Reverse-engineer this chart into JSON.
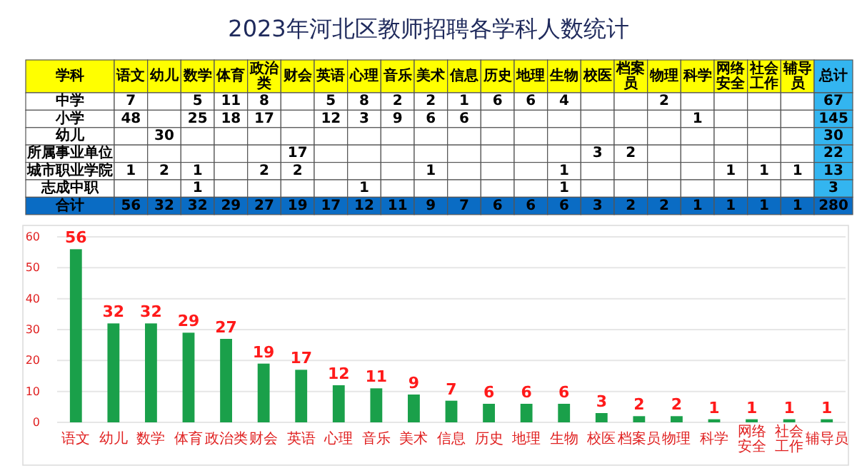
{
  "chart_data": [
    {
      "type": "heatmap",
      "title": "2023年河北区教师招聘各学科人数统计",
      "ylabel": "学科",
      "data_labels": true,
      "categories": [
        "语文",
        "幼儿",
        "数学",
        "体育",
        "政治类",
        "财会",
        "英语",
        "心理",
        "音乐",
        "美术",
        "信息",
        "历史",
        "地理",
        "生物",
        "校医",
        "档案员",
        "物理",
        "科学",
        "网络安全",
        "社会工作",
        "辅导员",
        "总计"
      ],
      "y_categories": [
        "中学",
        "小学",
        "幼儿",
        "所属事业单位",
        "城市职业学院",
        "志成中职",
        "合计"
      ],
      "cells": [
        [
          7,
          null,
          5,
          11,
          8,
          null,
          5,
          8,
          2,
          2,
          1,
          6,
          6,
          4,
          null,
          null,
          2,
          null,
          null,
          null,
          null,
          67
        ],
        [
          48,
          null,
          25,
          18,
          17,
          null,
          12,
          3,
          9,
          6,
          6,
          null,
          null,
          null,
          null,
          null,
          null,
          1,
          null,
          null,
          null,
          145
        ],
        [
          null,
          30,
          null,
          null,
          null,
          null,
          null,
          null,
          null,
          null,
          null,
          null,
          null,
          null,
          null,
          null,
          null,
          null,
          null,
          null,
          null,
          30
        ],
        [
          null,
          null,
          null,
          null,
          null,
          17,
          null,
          null,
          null,
          null,
          null,
          null,
          null,
          null,
          3,
          2,
          null,
          null,
          null,
          null,
          null,
          22
        ],
        [
          1,
          2,
          1,
          null,
          2,
          2,
          null,
          null,
          null,
          1,
          null,
          null,
          null,
          1,
          null,
          null,
          null,
          null,
          1,
          1,
          1,
          13
        ],
        [
          null,
          null,
          1,
          null,
          null,
          null,
          null,
          1,
          null,
          null,
          null,
          null,
          null,
          1,
          null,
          null,
          null,
          null,
          null,
          null,
          null,
          3
        ],
        [
          56,
          32,
          32,
          29,
          27,
          19,
          17,
          12,
          11,
          9,
          7,
          6,
          6,
          6,
          3,
          2,
          2,
          1,
          1,
          1,
          1,
          280
        ]
      ]
    },
    {
      "type": "bar",
      "categories": [
        "语文",
        "幼儿",
        "数学",
        "体育",
        "政治类",
        "财会",
        "英语",
        "心理",
        "音乐",
        "美术",
        "信息",
        "历史",
        "地理",
        "生物",
        "校医",
        "档案员",
        "物理",
        "科学",
        "网络安全",
        "社会工作",
        "辅导员"
      ],
      "values": [
        56,
        32,
        32,
        29,
        27,
        19,
        17,
        12,
        11,
        9,
        7,
        6,
        6,
        6,
        3,
        2,
        2,
        1,
        1,
        1,
        1
      ],
      "color": "#1aa04a",
      "ylim": [
        0,
        60
      ],
      "yticks": [
        0,
        10,
        20,
        30,
        40,
        50,
        60
      ],
      "grid": "y",
      "data_labels": true
    }
  ]
}
